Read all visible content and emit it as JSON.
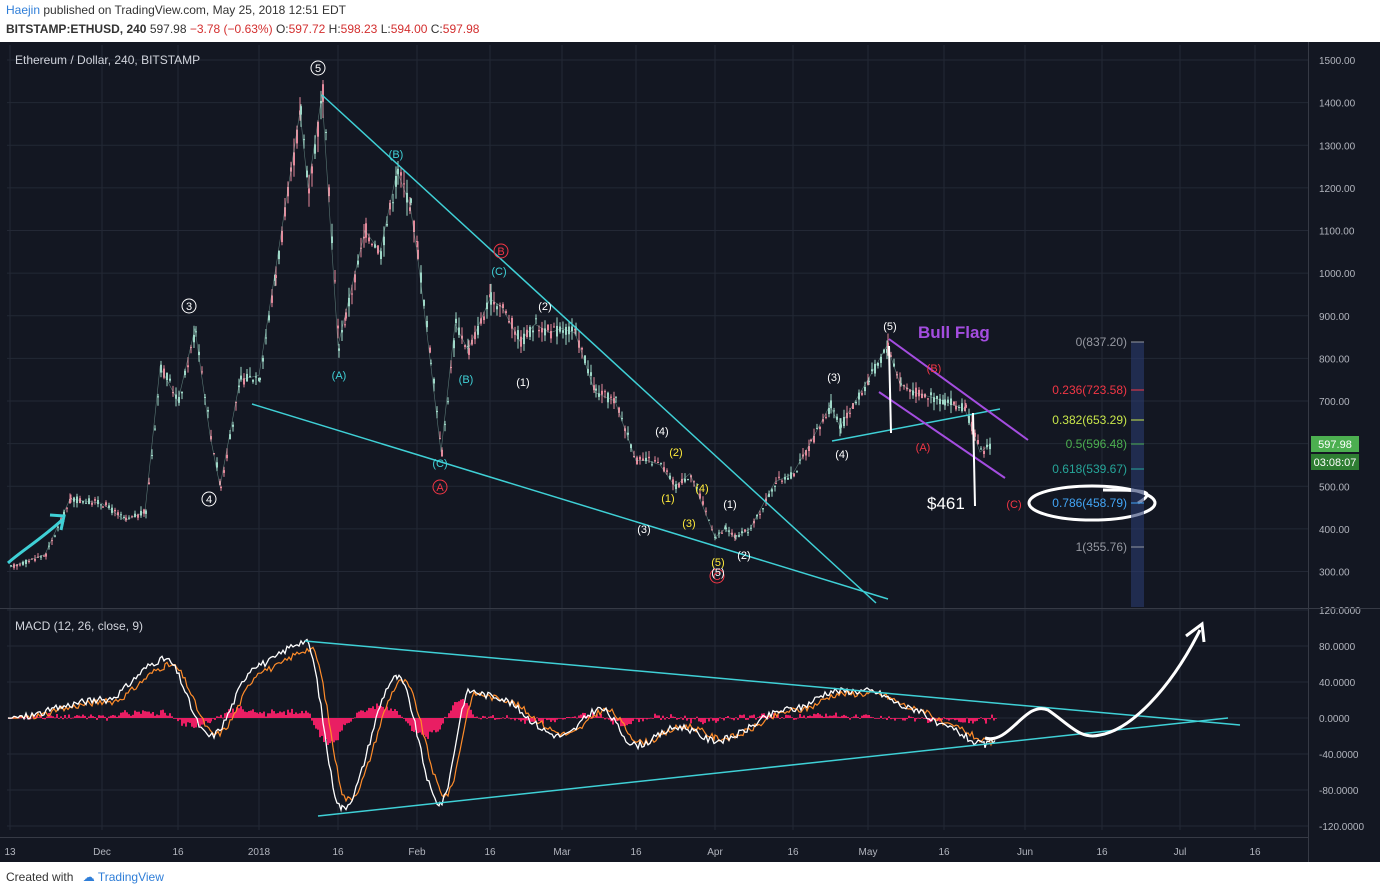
{
  "header": {
    "author": "Haejin",
    "published": "published on TradingView.com, May 25, 2018 12:51 EDT",
    "symbol": "BITSTAMP:ETHUSD, 240",
    "last": "597.98",
    "change": "−3.78 (−0.63%)",
    "o_label": "O:",
    "o_val": "597.72",
    "h_label": "H:",
    "h_val": "598.23",
    "l_label": "L:",
    "l_val": "594.00",
    "c_label": "C:",
    "c_val": "597.98"
  },
  "footer": {
    "created": "Created with",
    "brand": "TradingView"
  },
  "colors": {
    "background": "#131722",
    "grid": "#232835",
    "candle_up": "#9fd8c8",
    "candle_down": "#e58a9c",
    "trendline": "#3fd0d6",
    "channel": "#a44de0",
    "white": "#ffffff",
    "macd_hist": "#e91e63",
    "signal": "#ff8c2a",
    "price_badge": "#4caf50",
    "fib_0": "#9598a1",
    "fib_0236": "#f23645",
    "fib_0382": "#c8e64a",
    "fib_05": "#4caf50",
    "fib_0618": "#26a69a",
    "fib_0786": "#42a5f5",
    "fib_1": "#9598a1"
  },
  "chart_data": [
    {
      "type": "candlestick",
      "title": "Ethereum / Dollar, 240, BITSTAMP",
      "x_ticks": [
        "13",
        "Dec",
        "16",
        "2018",
        "16",
        "Feb",
        "16",
        "Mar",
        "16",
        "Apr",
        "16",
        "May",
        "16",
        "Jun",
        "16",
        "Jul",
        "16"
      ],
      "y_ticks": [
        "1500.00",
        "1400.00",
        "1300.00",
        "1200.00",
        "1100.00",
        "1000.00",
        "900.00",
        "800.00",
        "700.00",
        "600.00",
        "500.00",
        "400.00",
        "300.00"
      ],
      "ylim": [
        238,
        1520
      ],
      "scale": "linear",
      "grid": true,
      "series": [
        {
          "name": "ETHUSD",
          "points": [
            [
              "13",
              310
            ],
            [
              "Nov 20",
              340
            ],
            [
              "Nov 27",
              470
            ],
            [
              "Dec",
              460
            ],
            [
              "Dec 7",
              420
            ],
            [
              "Dec 10",
              440
            ],
            [
              "Dec 13",
              780
            ],
            [
              "16",
              700
            ],
            [
              "Dec 19",
              870
            ],
            [
              "Dec 21",
              620
            ],
            [
              "Dec 22",
              500
            ],
            [
              "Dec 26",
              750
            ],
            [
              "2018",
              760
            ],
            [
              "Jan 4",
              1000
            ],
            [
              "Jan 8",
              1380
            ],
            [
              "Jan 11",
              1200
            ],
            [
              "Jan 13",
              1420
            ],
            [
              "16",
              830
            ],
            [
              "Jan 17",
              900
            ],
            [
              "Jan 19",
              1100
            ],
            [
              "Jan 24",
              1050
            ],
            [
              "Jan 27",
              1240
            ],
            [
              "Jan 29",
              1160
            ],
            [
              "Feb",
              1050
            ],
            [
              "Feb 4",
              800
            ],
            [
              "Feb 6",
              580
            ],
            [
              "Feb 10",
              880
            ],
            [
              "Feb 13",
              820
            ],
            [
              "16",
              940
            ],
            [
              "Feb 19",
              920
            ],
            [
              "Feb 22",
              840
            ],
            [
              "Feb 25",
              880
            ],
            [
              "Feb 27",
              860
            ],
            [
              "Mar",
              870
            ],
            [
              "Mar 4",
              860
            ],
            [
              "Mar 8",
              720
            ],
            [
              "Mar 12",
              700
            ],
            [
              "16",
              560
            ],
            [
              "Mar 18",
              560
            ],
            [
              "Mar 20",
              550
            ],
            [
              "Mar 22",
              500
            ],
            [
              "Mar 25",
              530
            ],
            [
              "Mar 28",
              440
            ],
            [
              "Apr",
              380
            ],
            [
              "Apr 3",
              400
            ],
            [
              "Apr 6",
              380
            ],
            [
              "Apr 9",
              400
            ],
            [
              "Apr 12",
              510
            ],
            [
              "16",
              530
            ],
            [
              "Apr 20",
              600
            ],
            [
              "Apr 24",
              690
            ],
            [
              "Apr 26",
              640
            ],
            [
              "May",
              750
            ],
            [
              "May 5",
              830
            ],
            [
              "May 7",
              740
            ],
            [
              "May 10",
              720
            ],
            [
              "16",
              700
            ],
            [
              "May 19",
              690
            ],
            [
              "May 21",
              680
            ],
            [
              "May 23",
              580
            ],
            [
              "May 25",
              598
            ]
          ]
        }
      ],
      "last_price": "597.98",
      "countdown": "03:08:07",
      "fib_levels": [
        "0(837.20)",
        "0.236(723.58)",
        "0.382(653.29)",
        "0.5(596.48)",
        "0.618(539.67)",
        "0.786(458.79)",
        "1(355.76)"
      ],
      "annotations": {
        "title": "Bull Flag",
        "price_target": "$461",
        "labels": [
          "5",
          "3",
          "4",
          "A",
          "(B)",
          "(C)",
          "(A)",
          "(B)",
          "(C)",
          "B",
          "(1)",
          "(2)",
          "(3)",
          "(4)",
          "(1)",
          "(2)",
          "(3)",
          "(4)",
          "(5)",
          "C",
          "(1)",
          "(2)",
          "(3)",
          "(4)",
          "(5)",
          "(A)",
          "(B)",
          "(C)",
          "(5)"
        ]
      }
    },
    {
      "type": "line",
      "title": "MACD (12, 26, close, 9)",
      "y_ticks": [
        "120.0000",
        "80.0000",
        "40.0000",
        "0.0000",
        "-40.0000",
        "-80.0000",
        "-120.0000"
      ],
      "ylim": [
        -125,
        125
      ],
      "grid": true,
      "series": [
        {
          "name": "",
          "points": [
            [
              "13",
              0
            ],
            [
              "Dec",
              20
            ],
            [
              "16",
              65
            ],
            [
              "Dec 22",
              -20
            ],
            [
              "2018",
              60
            ],
            [
              "Jan 13",
              85
            ],
            [
              "16",
              -100
            ],
            [
              "Jan 27",
              45
            ],
            [
              "Feb 6",
              -95
            ],
            [
              "Feb 13",
              30
            ],
            [
              "16",
              25
            ],
            [
              "Mar",
              -20
            ],
            [
              "Mar 12",
              10
            ],
            [
              "16",
              -30
            ],
            [
              "Mar 25",
              -10
            ],
            [
              "Apr",
              -25
            ],
            [
              "16",
              10
            ],
            [
              "Apr 28",
              30
            ],
            [
              "May",
              30
            ],
            [
              "May 10",
              10
            ],
            [
              "16",
              -10
            ],
            [
              "May 23",
              -30
            ],
            [
              "May 25",
              -25
            ]
          ]
        }
      ]
    }
  ]
}
